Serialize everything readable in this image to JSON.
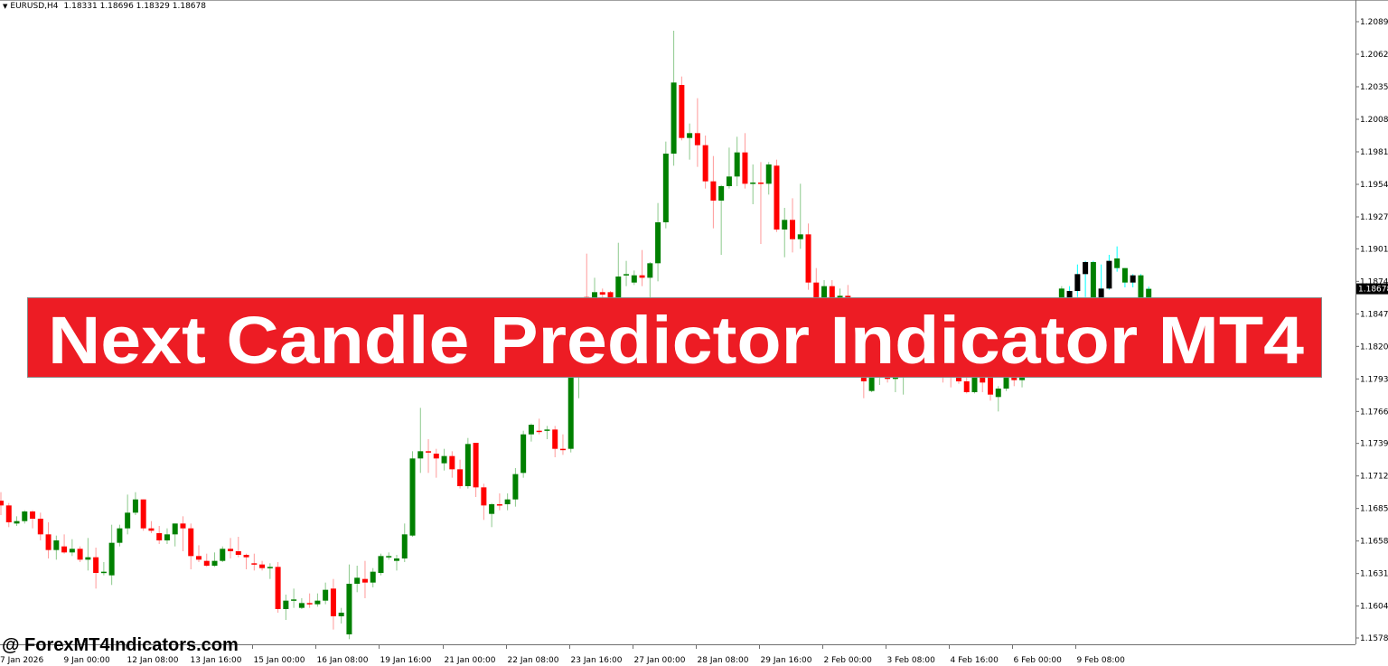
{
  "header": {
    "symbol_timeframe": "EURUSD,H4",
    "ohlc": "1.18331 1.18696 1.18329 1.18678"
  },
  "banner": {
    "title": "Next Candle Predictor Indicator MT4"
  },
  "watermark": "@ ForexMT4Indicators.com",
  "colors": {
    "bull_body": "#008000",
    "bear_body": "#ff0000",
    "bull_wick": "#8cc98c",
    "bear_wick": "#ff9a9a",
    "indicator_wick": "#00ffff",
    "indicator_black": "#000000",
    "banner": "#ed1c24",
    "price_label_bg": "#000000"
  },
  "chart_data": {
    "type": "candlestick",
    "symbol": "EURUSD",
    "timeframe": "H4",
    "grid": false,
    "ylim": [
      1.1575,
      1.2108
    ],
    "current_price": "1.18678",
    "y_ticks": [
      "1.20895",
      "1.20625",
      "1.20355",
      "1.20085",
      "1.19815",
      "1.19545",
      "1.19275",
      "1.19010",
      "1.18740",
      "1.18470",
      "1.18200",
      "1.17930",
      "1.17660",
      "1.17395",
      "1.17125",
      "1.16855",
      "1.16585",
      "1.16315",
      "1.16045",
      "1.15780"
    ],
    "x_ticks": [
      {
        "bar": 0,
        "label": "7 Jan 2026"
      },
      {
        "bar": 8,
        "label": "9 Jan 00:00"
      },
      {
        "bar": 16,
        "label": "12 Jan 08:00"
      },
      {
        "bar": 24,
        "label": "13 Jan 16:00"
      },
      {
        "bar": 32,
        "label": "15 Jan 00:00"
      },
      {
        "bar": 40,
        "label": "16 Jan 08:00"
      },
      {
        "bar": 48,
        "label": "19 Jan 16:00"
      },
      {
        "bar": 56,
        "label": "21 Jan 00:00"
      },
      {
        "bar": 64,
        "label": "22 Jan 08:00"
      },
      {
        "bar": 72,
        "label": "23 Jan 16:00"
      },
      {
        "bar": 80,
        "label": "27 Jan 00:00"
      },
      {
        "bar": 88,
        "label": "28 Jan 08:00"
      },
      {
        "bar": 96,
        "label": "29 Jan 16:00"
      },
      {
        "bar": 104,
        "label": "2 Feb 00:00"
      },
      {
        "bar": 112,
        "label": "3 Feb 08:00"
      },
      {
        "bar": 120,
        "label": "4 Feb 16:00"
      },
      {
        "bar": 128,
        "label": "6 Feb 00:00"
      },
      {
        "bar": 136,
        "label": "9 Feb 08:00"
      }
    ],
    "ohlc_columns": [
      "open",
      "high",
      "low",
      "close"
    ],
    "ohlc": [
      [
        1.1692,
        1.1699,
        1.168,
        1.1688
      ],
      [
        1.1688,
        1.169,
        1.167,
        1.1674
      ],
      [
        1.1673,
        1.1679,
        1.1671,
        1.1675
      ],
      [
        1.1675,
        1.1684,
        1.1673,
        1.1683
      ],
      [
        1.1683,
        1.1684,
        1.1669,
        1.1677
      ],
      [
        1.1677,
        1.1682,
        1.1659,
        1.1664
      ],
      [
        1.1664,
        1.1674,
        1.1644,
        1.1651
      ],
      [
        1.1651,
        1.1663,
        1.1643,
        1.1659
      ],
      [
        1.1654,
        1.1664,
        1.1648,
        1.1649
      ],
      [
        1.1649,
        1.166,
        1.1646,
        1.1652
      ],
      [
        1.1652,
        1.1654,
        1.1641,
        1.1643
      ],
      [
        1.1643,
        1.1661,
        1.1634,
        1.1645
      ],
      [
        1.1645,
        1.1653,
        1.1619,
        1.1632
      ],
      [
        1.1632,
        1.1641,
        1.163,
        1.1633
      ],
      [
        1.163,
        1.1672,
        1.1622,
        1.1657
      ],
      [
        1.1657,
        1.1672,
        1.1654,
        1.1669
      ],
      [
        1.1669,
        1.1697,
        1.1664,
        1.1682
      ],
      [
        1.1682,
        1.1699,
        1.168,
        1.1693
      ],
      [
        1.1693,
        1.1693,
        1.1667,
        1.1669
      ],
      [
        1.1669,
        1.1675,
        1.1665,
        1.1667
      ],
      [
        1.1665,
        1.1671,
        1.1656,
        1.1659
      ],
      [
        1.1659,
        1.1669,
        1.1656,
        1.1664
      ],
      [
        1.1664,
        1.1673,
        1.1654,
        1.1673
      ],
      [
        1.1673,
        1.1679,
        1.165,
        1.1669
      ],
      [
        1.1669,
        1.1673,
        1.1635,
        1.1646
      ],
      [
        1.1646,
        1.1655,
        1.1641,
        1.1643
      ],
      [
        1.1642,
        1.1648,
        1.1637,
        1.1638
      ],
      [
        1.1638,
        1.1649,
        1.1637,
        1.1642
      ],
      [
        1.1642,
        1.1654,
        1.1641,
        1.1652
      ],
      [
        1.1652,
        1.1661,
        1.1644,
        1.165
      ],
      [
        1.165,
        1.1662,
        1.1645,
        1.1647
      ],
      [
        1.1647,
        1.1648,
        1.1635,
        1.1645
      ],
      [
        1.164,
        1.1648,
        1.1634,
        1.1639
      ],
      [
        1.1639,
        1.1642,
        1.1634,
        1.1636
      ],
      [
        1.1636,
        1.164,
        1.1627,
        1.1637
      ],
      [
        1.1637,
        1.1641,
        1.1599,
        1.1602
      ],
      [
        1.1602,
        1.1614,
        1.1593,
        1.1609
      ],
      [
        1.1609,
        1.1619,
        1.1603,
        1.161
      ],
      [
        1.1603,
        1.1611,
        1.1602,
        1.1607
      ],
      [
        1.1607,
        1.1615,
        1.1603,
        1.1606
      ],
      [
        1.1606,
        1.1615,
        1.1604,
        1.1609
      ],
      [
        1.1609,
        1.1624,
        1.1606,
        1.1618
      ],
      [
        1.1619,
        1.1627,
        1.1585,
        1.1596
      ],
      [
        1.1596,
        1.1603,
        1.159,
        1.1599
      ],
      [
        1.1581,
        1.1639,
        1.1577,
        1.1623
      ],
      [
        1.1623,
        1.1638,
        1.1616,
        1.1628
      ],
      [
        1.1627,
        1.1642,
        1.1611,
        1.1624
      ],
      [
        1.1624,
        1.1636,
        1.162,
        1.1633
      ],
      [
        1.1632,
        1.1648,
        1.163,
        1.1646
      ],
      [
        1.1645,
        1.1649,
        1.1643,
        1.1646
      ],
      [
        1.1642,
        1.1647,
        1.1634,
        1.1644
      ],
      [
        1.1644,
        1.1673,
        1.1641,
        1.1664
      ],
      [
        1.1663,
        1.1733,
        1.1662,
        1.1727
      ],
      [
        1.1727,
        1.1769,
        1.1715,
        1.1733
      ],
      [
        1.1733,
        1.1743,
        1.1715,
        1.1732
      ],
      [
        1.1731,
        1.1735,
        1.1711,
        1.1727
      ],
      [
        1.1723,
        1.1735,
        1.1717,
        1.1729
      ],
      [
        1.1729,
        1.1733,
        1.1711,
        1.1718
      ],
      [
        1.1718,
        1.1726,
        1.1702,
        1.1704
      ],
      [
        1.1704,
        1.1744,
        1.1702,
        1.1739
      ],
      [
        1.174,
        1.174,
        1.1695,
        1.1703
      ],
      [
        1.1703,
        1.1706,
        1.1676,
        1.1688
      ],
      [
        1.1681,
        1.169,
        1.167,
        1.1689
      ],
      [
        1.1689,
        1.1698,
        1.1684,
        1.1688
      ],
      [
        1.1689,
        1.1698,
        1.1684,
        1.1693
      ],
      [
        1.1693,
        1.1719,
        1.1687,
        1.1714
      ],
      [
        1.1715,
        1.175,
        1.1711,
        1.1747
      ],
      [
        1.1747,
        1.1756,
        1.1741,
        1.1755
      ],
      [
        1.175,
        1.176,
        1.1747,
        1.1749
      ],
      [
        1.175,
        1.1754,
        1.1743,
        1.1751
      ],
      [
        1.1751,
        1.1754,
        1.1728,
        1.1735
      ],
      [
        1.1735,
        1.1747,
        1.173,
        1.1734
      ],
      [
        1.1735,
        1.1811,
        1.1732,
        1.1807
      ],
      [
        1.1807,
        1.186,
        1.1777,
        1.1852
      ],
      [
        1.1861,
        1.1897,
        1.1849,
        1.1852
      ],
      [
        1.1856,
        1.1877,
        1.1852,
        1.1865
      ],
      [
        1.1865,
        1.1868,
        1.186,
        1.1863
      ],
      [
        1.1865,
        1.1866,
        1.1852,
        1.1858
      ],
      [
        1.1856,
        1.1906,
        1.1852,
        1.1878
      ],
      [
        1.1879,
        1.1891,
        1.187,
        1.188
      ],
      [
        1.1873,
        1.1883,
        1.1871,
        1.1879
      ],
      [
        1.1879,
        1.19,
        1.187,
        1.1877
      ],
      [
        1.1877,
        1.189,
        1.186,
        1.1889
      ],
      [
        1.1889,
        1.1939,
        1.1874,
        1.1923
      ],
      [
        1.1923,
        1.199,
        1.1918,
        1.198
      ],
      [
        1.198,
        1.2082,
        1.197,
        1.2039
      ],
      [
        1.2037,
        1.2044,
        1.1991,
        1.1993
      ],
      [
        1.1993,
        1.2005,
        1.1975,
        1.1997
      ],
      [
        1.1997,
        1.2026,
        1.1969,
        1.1987
      ],
      [
        1.1987,
        1.1995,
        1.1951,
        1.1957
      ],
      [
        1.1957,
        1.1978,
        1.1918,
        1.1941
      ],
      [
        1.1941,
        1.1954,
        1.1896,
        1.1953
      ],
      [
        1.1953,
        1.1985,
        1.1951,
        1.1961
      ],
      [
        1.1961,
        1.1994,
        1.1953,
        1.1981
      ],
      [
        1.1981,
        1.1997,
        1.1951,
        1.1955
      ],
      [
        1.1955,
        1.1971,
        1.1938,
        1.1956
      ],
      [
        1.1956,
        1.1973,
        1.1905,
        1.1955
      ],
      [
        1.1955,
        1.1973,
        1.1946,
        1.1971
      ],
      [
        1.197,
        1.1975,
        1.1915,
        1.1917
      ],
      [
        1.1917,
        1.1935,
        1.1894,
        1.1925
      ],
      [
        1.1925,
        1.1943,
        1.1898,
        1.1909
      ],
      [
        1.1909,
        1.1955,
        1.1901,
        1.1913
      ],
      [
        1.1913,
        1.1922,
        1.1867,
        1.1873
      ],
      [
        1.1873,
        1.1885,
        1.1849,
        1.1856
      ],
      [
        1.186,
        1.1875,
        1.1856,
        1.187
      ],
      [
        1.187,
        1.1875,
        1.1852,
        1.186
      ],
      [
        1.186,
        1.1868,
        1.1856,
        1.1862
      ],
      [
        1.1862,
        1.1871,
        1.1849,
        1.1856
      ],
      [
        1.1856,
        1.186,
        1.181,
        1.1815
      ],
      [
        1.1815,
        1.182,
        1.1777,
        1.1791
      ],
      [
        1.1783,
        1.18,
        1.1782,
        1.1794
      ],
      [
        1.1794,
        1.1812,
        1.1788,
        1.1805
      ],
      [
        1.1805,
        1.181,
        1.179,
        1.1793
      ],
      [
        1.1793,
        1.1806,
        1.1782,
        1.18
      ],
      [
        1.18,
        1.1815,
        1.178,
        1.181
      ],
      [
        1.181,
        1.1825,
        1.1805,
        1.182
      ],
      [
        1.182,
        1.183,
        1.1808,
        1.1812
      ],
      [
        1.1812,
        1.1822,
        1.18,
        1.1818
      ],
      [
        1.1818,
        1.1826,
        1.1804,
        1.1808
      ],
      [
        1.1808,
        1.1815,
        1.179,
        1.18
      ],
      [
        1.18,
        1.1806,
        1.1786,
        1.1796
      ],
      [
        1.1796,
        1.18,
        1.1789,
        1.1791
      ],
      [
        1.1791,
        1.1794,
        1.1781,
        1.1782
      ],
      [
        1.1782,
        1.18,
        1.1781,
        1.1794
      ],
      [
        1.1794,
        1.1802,
        1.1782,
        1.179
      ],
      [
        1.1794,
        1.18,
        1.1775,
        1.178
      ],
      [
        1.1778,
        1.1787,
        1.1766,
        1.1785
      ],
      [
        1.1785,
        1.18,
        1.1783,
        1.1794
      ],
      [
        1.1794,
        1.18,
        1.1787,
        1.1792
      ],
      [
        1.1792,
        1.1805,
        1.1786,
        1.18
      ],
      [
        1.18,
        1.1815,
        1.1795,
        1.181
      ],
      [
        1.181,
        1.1825,
        1.1805,
        1.182
      ],
      [
        1.182,
        1.1835,
        1.1815,
        1.183
      ],
      [
        1.183,
        1.185,
        1.1825,
        1.1845
      ],
      [
        1.1852,
        1.187,
        1.1845,
        1.1868
      ],
      [
        1.1852,
        1.187,
        1.1845,
        1.1866
      ],
      [
        1.1866,
        1.1888,
        1.1861,
        1.188
      ],
      [
        1.188,
        1.1891,
        1.1861,
        1.189
      ],
      [
        1.189,
        1.1891,
        1.184,
        1.1845
      ],
      [
        1.1845,
        1.1888,
        1.1835,
        1.1868
      ],
      [
        1.1868,
        1.1896,
        1.1867,
        1.1891
      ],
      [
        1.1893,
        1.1903,
        1.1882,
        1.1885
      ],
      [
        1.1885,
        1.1885,
        1.1869,
        1.1873
      ],
      [
        1.1873,
        1.188,
        1.1869,
        1.1879
      ],
      [
        1.1879,
        1.188,
        1.1852,
        1.1856
      ],
      [
        1.18331,
        1.18696,
        1.18329,
        1.18678
      ]
    ],
    "indicator_bars": [
      {
        "bar": 135,
        "body": "black"
      },
      {
        "bar": 136,
        "body": "black"
      },
      {
        "bar": 137,
        "body": "black"
      },
      {
        "bar": 138,
        "body": "green"
      },
      {
        "bar": 139,
        "body": "black"
      },
      {
        "bar": 140,
        "body": "black"
      },
      {
        "bar": 141,
        "body": "green"
      },
      {
        "bar": 142,
        "body": "green"
      },
      {
        "bar": 143,
        "body": "black"
      },
      {
        "bar": 144,
        "body": "green"
      },
      {
        "bar": 145,
        "body": "green"
      }
    ]
  }
}
